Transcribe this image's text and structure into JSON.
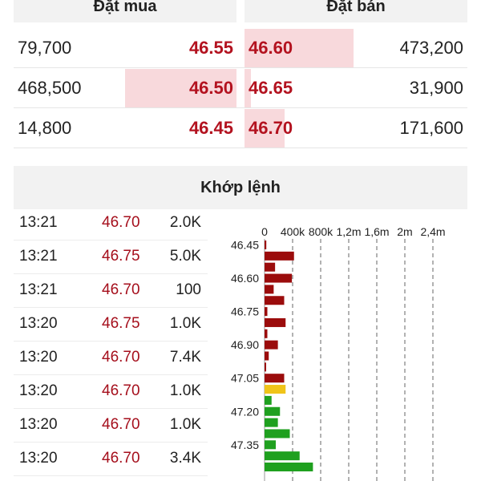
{
  "order_book": {
    "buy_header": "Đặt mua",
    "sell_header": "Đặt bán",
    "rows": [
      {
        "buy_volume": "79,700",
        "buy_price": "46.55",
        "sell_price": "46.60",
        "sell_volume": "473,200",
        "buy_fill": 0.0,
        "sell_fill": 0.49
      },
      {
        "buy_volume": "468,500",
        "buy_price": "46.50",
        "sell_price": "46.65",
        "sell_volume": "31,900",
        "buy_fill": 0.5,
        "sell_fill": 0.03
      },
      {
        "buy_volume": "14,800",
        "buy_price": "46.45",
        "sell_price": "46.70",
        "sell_volume": "171,600",
        "buy_fill": 0.0,
        "sell_fill": 0.18
      }
    ]
  },
  "matched": {
    "title": "Khớp lệnh",
    "trades": [
      {
        "time": "13:21",
        "price": "46.70",
        "volume": "2.0K"
      },
      {
        "time": "13:21",
        "price": "46.75",
        "volume": "5.0K"
      },
      {
        "time": "13:21",
        "price": "46.70",
        "volume": "100"
      },
      {
        "time": "13:20",
        "price": "46.75",
        "volume": "1.0K"
      },
      {
        "time": "13:20",
        "price": "46.70",
        "volume": "7.4K"
      },
      {
        "time": "13:20",
        "price": "46.70",
        "volume": "1.0K"
      },
      {
        "time": "13:20",
        "price": "46.70",
        "volume": "1.0K"
      },
      {
        "time": "13:20",
        "price": "46.70",
        "volume": "3.4K"
      }
    ]
  },
  "chart_data": {
    "type": "bar",
    "orientation": "horizontal",
    "x_ticks": [
      "0",
      "400k",
      "800k",
      "1,2m",
      "1,6m",
      "2m",
      "2,4m"
    ],
    "xlim": [
      0,
      2400000
    ],
    "y_ticks": [
      "46.45",
      "46.60",
      "46.75",
      "46.90",
      "47.05",
      "47.20",
      "47.35"
    ],
    "grid": true,
    "colors": {
      "down": "#9b0c0c",
      "reference": "#f0c419",
      "up": "#1fa01f"
    },
    "bars": [
      {
        "price": 46.45,
        "volume": 25000,
        "color": "down"
      },
      {
        "price": 46.5,
        "volume": 420000,
        "color": "down"
      },
      {
        "price": 46.55,
        "volume": 150000,
        "color": "down"
      },
      {
        "price": 46.6,
        "volume": 390000,
        "color": "down"
      },
      {
        "price": 46.65,
        "volume": 130000,
        "color": "down"
      },
      {
        "price": 46.7,
        "volume": 280000,
        "color": "down"
      },
      {
        "price": 46.75,
        "volume": 40000,
        "color": "down"
      },
      {
        "price": 46.8,
        "volume": 300000,
        "color": "down"
      },
      {
        "price": 46.85,
        "volume": 40000,
        "color": "down"
      },
      {
        "price": 46.9,
        "volume": 190000,
        "color": "down"
      },
      {
        "price": 46.95,
        "volume": 60000,
        "color": "down"
      },
      {
        "price": 47.0,
        "volume": 10000,
        "color": "down"
      },
      {
        "price": 47.05,
        "volume": 280000,
        "color": "down"
      },
      {
        "price": 47.1,
        "volume": 300000,
        "color": "reference"
      },
      {
        "price": 47.15,
        "volume": 100000,
        "color": "up"
      },
      {
        "price": 47.2,
        "volume": 220000,
        "color": "up"
      },
      {
        "price": 47.25,
        "volume": 190000,
        "color": "up"
      },
      {
        "price": 47.3,
        "volume": 360000,
        "color": "up"
      },
      {
        "price": 47.35,
        "volume": 160000,
        "color": "up"
      },
      {
        "price": 47.4,
        "volume": 500000,
        "color": "up"
      },
      {
        "price": 47.45,
        "volume": 690000,
        "color": "up"
      }
    ]
  }
}
